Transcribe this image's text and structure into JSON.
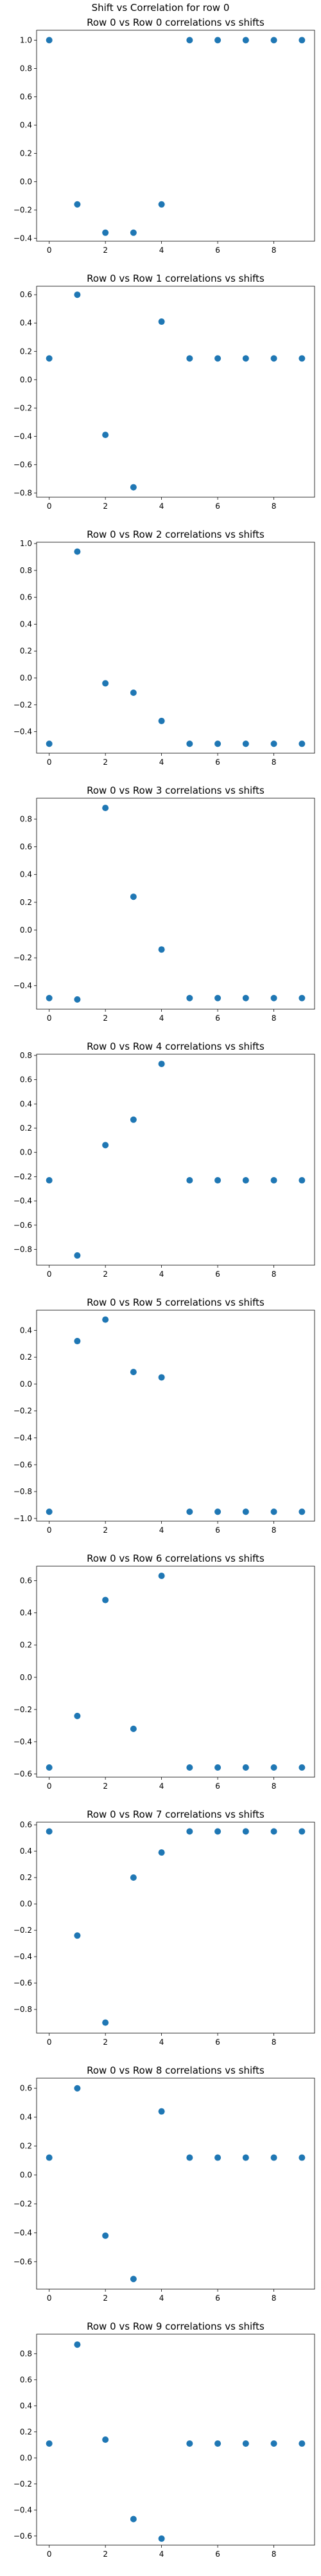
{
  "figure": {
    "suptitle": "Shift vs Correlation for row 0"
  },
  "chart_data": [
    {
      "type": "scatter",
      "title": "Row 0 vs Row 0 correlations vs shifts",
      "x": [
        0,
        1,
        2,
        3,
        4,
        5,
        6,
        7,
        8,
        9
      ],
      "y": [
        1.0,
        -0.16,
        -0.36,
        -0.36,
        -0.16,
        1.0,
        1.0,
        1.0,
        1.0,
        1.0
      ],
      "xticks": [
        0,
        2,
        4,
        6,
        8
      ],
      "yticks": [
        -0.4,
        -0.2,
        0.0,
        0.2,
        0.4,
        0.6,
        0.8,
        1.0
      ],
      "ylim": [
        -0.42,
        1.07
      ],
      "xlim": [
        -0.45,
        9.45
      ],
      "color": "#1f77b4",
      "grid": false
    },
    {
      "type": "scatter",
      "title": "Row 0 vs Row 1 correlations vs shifts",
      "x": [
        0,
        1,
        2,
        3,
        4,
        5,
        6,
        7,
        8,
        9
      ],
      "y": [
        0.15,
        0.6,
        -0.39,
        -0.76,
        0.41,
        0.15,
        0.15,
        0.15,
        0.15,
        0.15
      ],
      "xticks": [
        0,
        2,
        4,
        6,
        8
      ],
      "yticks": [
        -0.8,
        -0.6,
        -0.4,
        -0.2,
        0.0,
        0.2,
        0.4,
        0.6
      ],
      "ylim": [
        -0.83,
        0.66
      ],
      "xlim": [
        -0.45,
        9.45
      ],
      "color": "#1f77b4",
      "grid": false
    },
    {
      "type": "scatter",
      "title": "Row 0 vs Row 2 correlations vs shifts",
      "x": [
        0,
        1,
        2,
        3,
        4,
        5,
        6,
        7,
        8,
        9
      ],
      "y": [
        -0.49,
        0.94,
        -0.04,
        -0.11,
        -0.32,
        -0.49,
        -0.49,
        -0.49,
        -0.49,
        -0.49
      ],
      "xticks": [
        0,
        2,
        4,
        6,
        8
      ],
      "yticks": [
        -0.4,
        -0.2,
        0.0,
        0.2,
        0.4,
        0.6,
        0.8,
        1.0
      ],
      "ylim": [
        -0.56,
        1.01
      ],
      "xlim": [
        -0.45,
        9.45
      ],
      "color": "#1f77b4",
      "grid": false
    },
    {
      "type": "scatter",
      "title": "Row 0 vs Row 3 correlations vs shifts",
      "x": [
        0,
        1,
        2,
        3,
        4,
        5,
        6,
        7,
        8,
        9
      ],
      "y": [
        -0.49,
        -0.5,
        0.88,
        0.24,
        -0.14,
        -0.49,
        -0.49,
        -0.49,
        -0.49,
        -0.49
      ],
      "xticks": [
        0,
        2,
        4,
        6,
        8
      ],
      "yticks": [
        -0.4,
        -0.2,
        0.0,
        0.2,
        0.4,
        0.6,
        0.8
      ],
      "ylim": [
        -0.57,
        0.95
      ],
      "xlim": [
        -0.45,
        9.45
      ],
      "color": "#1f77b4",
      "grid": false
    },
    {
      "type": "scatter",
      "title": "Row 0 vs Row 4 correlations vs shifts",
      "x": [
        0,
        1,
        2,
        3,
        4,
        5,
        6,
        7,
        8,
        9
      ],
      "y": [
        -0.23,
        -0.85,
        0.06,
        0.27,
        0.73,
        -0.23,
        -0.23,
        -0.23,
        -0.23,
        -0.23
      ],
      "xticks": [
        0,
        2,
        4,
        6,
        8
      ],
      "yticks": [
        -0.8,
        -0.6,
        -0.4,
        -0.2,
        0.0,
        0.2,
        0.4,
        0.6,
        0.8
      ],
      "ylim": [
        -0.93,
        0.81
      ],
      "xlim": [
        -0.45,
        9.45
      ],
      "color": "#1f77b4",
      "grid": false
    },
    {
      "type": "scatter",
      "title": "Row 0 vs Row 5 correlations vs shifts",
      "x": [
        0,
        1,
        2,
        3,
        4,
        5,
        6,
        7,
        8,
        9
      ],
      "y": [
        -0.95,
        0.32,
        0.48,
        0.09,
        0.05,
        -0.95,
        -0.95,
        -0.95,
        -0.95,
        -0.95
      ],
      "xticks": [
        0,
        2,
        4,
        6,
        8
      ],
      "yticks": [
        -1.0,
        -0.8,
        -0.6,
        -0.4,
        -0.2,
        0.0,
        0.2,
        0.4
      ],
      "ylim": [
        -1.02,
        0.55
      ],
      "xlim": [
        -0.45,
        9.45
      ],
      "color": "#1f77b4",
      "grid": false
    },
    {
      "type": "scatter",
      "title": "Row 0 vs Row 6 correlations vs shifts",
      "x": [
        0,
        1,
        2,
        3,
        4,
        5,
        6,
        7,
        8,
        9
      ],
      "y": [
        -0.56,
        -0.24,
        0.48,
        -0.32,
        0.63,
        -0.56,
        -0.56,
        -0.56,
        -0.56,
        -0.56
      ],
      "xticks": [
        0,
        2,
        4,
        6,
        8
      ],
      "yticks": [
        -0.6,
        -0.4,
        -0.2,
        0.0,
        0.2,
        0.4,
        0.6
      ],
      "ylim": [
        -0.62,
        0.69
      ],
      "xlim": [
        -0.45,
        9.45
      ],
      "color": "#1f77b4",
      "grid": false
    },
    {
      "type": "scatter",
      "title": "Row 0 vs Row 7 correlations vs shifts",
      "x": [
        0,
        1,
        2,
        3,
        4,
        5,
        6,
        7,
        8,
        9
      ],
      "y": [
        0.55,
        -0.24,
        -0.9,
        0.2,
        0.39,
        0.55,
        0.55,
        0.55,
        0.55,
        0.55
      ],
      "xticks": [
        0,
        2,
        4,
        6,
        8
      ],
      "yticks": [
        -0.8,
        -0.6,
        -0.4,
        -0.2,
        0.0,
        0.2,
        0.4,
        0.6
      ],
      "ylim": [
        -0.98,
        0.62
      ],
      "xlim": [
        -0.45,
        9.45
      ],
      "color": "#1f77b4",
      "grid": false
    },
    {
      "type": "scatter",
      "title": "Row 0 vs Row 8 correlations vs shifts",
      "x": [
        0,
        1,
        2,
        3,
        4,
        5,
        6,
        7,
        8,
        9
      ],
      "y": [
        0.12,
        0.6,
        -0.42,
        -0.72,
        0.44,
        0.12,
        0.12,
        0.12,
        0.12,
        0.12
      ],
      "xticks": [
        0,
        2,
        4,
        6,
        8
      ],
      "yticks": [
        -0.6,
        -0.4,
        -0.2,
        0.0,
        0.2,
        0.4,
        0.6
      ],
      "ylim": [
        -0.79,
        0.67
      ],
      "xlim": [
        -0.45,
        9.45
      ],
      "color": "#1f77b4",
      "grid": false
    },
    {
      "type": "scatter",
      "title": "Row 0 vs Row 9 correlations vs shifts",
      "x": [
        0,
        1,
        2,
        3,
        4,
        5,
        6,
        7,
        8,
        9
      ],
      "y": [
        0.11,
        0.87,
        0.14,
        -0.47,
        -0.62,
        0.11,
        0.11,
        0.11,
        0.11,
        0.11
      ],
      "xticks": [
        0,
        2,
        4,
        6,
        8
      ],
      "yticks": [
        -0.6,
        -0.4,
        -0.2,
        0.0,
        0.2,
        0.4,
        0.6,
        0.8
      ],
      "ylim": [
        -0.67,
        0.95
      ],
      "xlim": [
        -0.45,
        9.45
      ],
      "color": "#1f77b4",
      "grid": false
    }
  ]
}
